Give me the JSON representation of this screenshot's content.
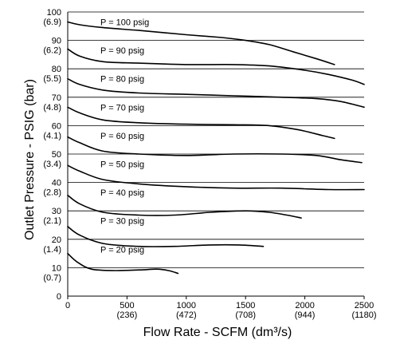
{
  "chart_data": {
    "type": "line",
    "title": "",
    "xlabel": "Flow Rate - SCFM (dm³/s)",
    "ylabel": "Outlet Pressure - PSIG (bar)",
    "xlim": [
      0,
      2500
    ],
    "ylim": [
      0,
      100
    ],
    "grid": "horizontal",
    "x_ticks": [
      {
        "value": 0,
        "label": "0",
        "sublabel": ""
      },
      {
        "value": 500,
        "label": "500",
        "sublabel": "(236)"
      },
      {
        "value": 1000,
        "label": "1000",
        "sublabel": "(472)"
      },
      {
        "value": 1500,
        "label": "1500",
        "sublabel": "(708)"
      },
      {
        "value": 2000,
        "label": "2000",
        "sublabel": "(944)"
      },
      {
        "value": 2500,
        "label": "2500",
        "sublabel": "(1180)"
      }
    ],
    "y_ticks": [
      {
        "value": 0,
        "label": "0",
        "sublabel": ""
      },
      {
        "value": 10,
        "label": "10",
        "sublabel": "(0.7)"
      },
      {
        "value": 20,
        "label": "20",
        "sublabel": "(1.4)"
      },
      {
        "value": 30,
        "label": "30",
        "sublabel": "(2.1)"
      },
      {
        "value": 40,
        "label": "40",
        "sublabel": "(2.8)"
      },
      {
        "value": 50,
        "label": "50",
        "sublabel": "(3.4)"
      },
      {
        "value": 60,
        "label": "60",
        "sublabel": "(4.1)"
      },
      {
        "value": 70,
        "label": "70",
        "sublabel": "(4.8)"
      },
      {
        "value": 80,
        "label": "80",
        "sublabel": "(5.5)"
      },
      {
        "value": 90,
        "label": "90",
        "sublabel": "(6.2)"
      },
      {
        "value": 100,
        "label": "100",
        "sublabel": "(6.9)"
      }
    ],
    "series": [
      {
        "name": "P = 100 psig",
        "label_at": [
          275,
          96.5
        ],
        "x": [
          0,
          100,
          300,
          600,
          1000,
          1300,
          1500,
          1700,
          1900,
          2100,
          2250
        ],
        "y": [
          96.5,
          95.5,
          94.5,
          93.5,
          92,
          91,
          90,
          88.5,
          86,
          83.5,
          81.5
        ]
      },
      {
        "name": "P = 90 psig",
        "label_at": [
          275,
          86.5
        ],
        "x": [
          0,
          100,
          300,
          600,
          1000,
          1400,
          1700,
          2000,
          2200,
          2400,
          2500
        ],
        "y": [
          87,
          84.5,
          82.5,
          82,
          81.5,
          81.5,
          81,
          79.5,
          78,
          76,
          74.5
        ]
      },
      {
        "name": "P = 80 psig",
        "label_at": [
          275,
          76.5
        ],
        "x": [
          0,
          100,
          300,
          600,
          1000,
          1400,
          1800,
          2100,
          2300,
          2500
        ],
        "y": [
          76.5,
          74.5,
          72.5,
          71.5,
          71,
          70.5,
          70,
          69.5,
          68.5,
          66.5
        ]
      },
      {
        "name": "P = 70 psig",
        "label_at": [
          275,
          66.5
        ],
        "x": [
          0,
          100,
          300,
          600,
          1000,
          1400,
          1700,
          1950,
          2150,
          2250
        ],
        "y": [
          66.5,
          64.5,
          62,
          61,
          60.5,
          60.3,
          60,
          58.5,
          56.5,
          55.5
        ]
      },
      {
        "name": "P = 60 psig",
        "label_at": [
          275,
          56.5
        ],
        "x": [
          0,
          100,
          300,
          600,
          1000,
          1400,
          1800,
          2100,
          2300,
          2480
        ],
        "y": [
          56,
          54,
          51,
          50,
          49.5,
          50,
          50,
          49.5,
          48,
          47
        ]
      },
      {
        "name": "P = 50 psig",
        "label_at": [
          275,
          46.5
        ],
        "x": [
          0,
          100,
          300,
          600,
          1000,
          1400,
          1800,
          2200,
          2500
        ],
        "y": [
          46,
          44,
          41,
          39.5,
          38.5,
          38,
          38,
          37.5,
          37.5
        ]
      },
      {
        "name": "P = 40 psig",
        "label_at": [
          275,
          36.5
        ],
        "x": [
          0,
          100,
          300,
          600,
          900,
          1200,
          1500,
          1700,
          1850,
          1970
        ],
        "y": [
          35.5,
          32.5,
          29.5,
          28.5,
          28.5,
          29.5,
          30,
          29.5,
          28.5,
          27.5
        ]
      },
      {
        "name": "P = 30 psig",
        "label_at": [
          275,
          26.5
        ],
        "x": [
          0,
          100,
          300,
          600,
          900,
          1200,
          1450,
          1650
        ],
        "y": [
          24.5,
          21.5,
          18.5,
          17.5,
          17.5,
          18,
          18,
          17.5
        ]
      },
      {
        "name": "P = 20 psig",
        "label_at": [
          275,
          16.5
        ],
        "x": [
          0,
          80,
          200,
          400,
          600,
          750,
          850,
          930
        ],
        "y": [
          15,
          12,
          9.5,
          9,
          9.2,
          9.5,
          9,
          8
        ]
      }
    ]
  }
}
